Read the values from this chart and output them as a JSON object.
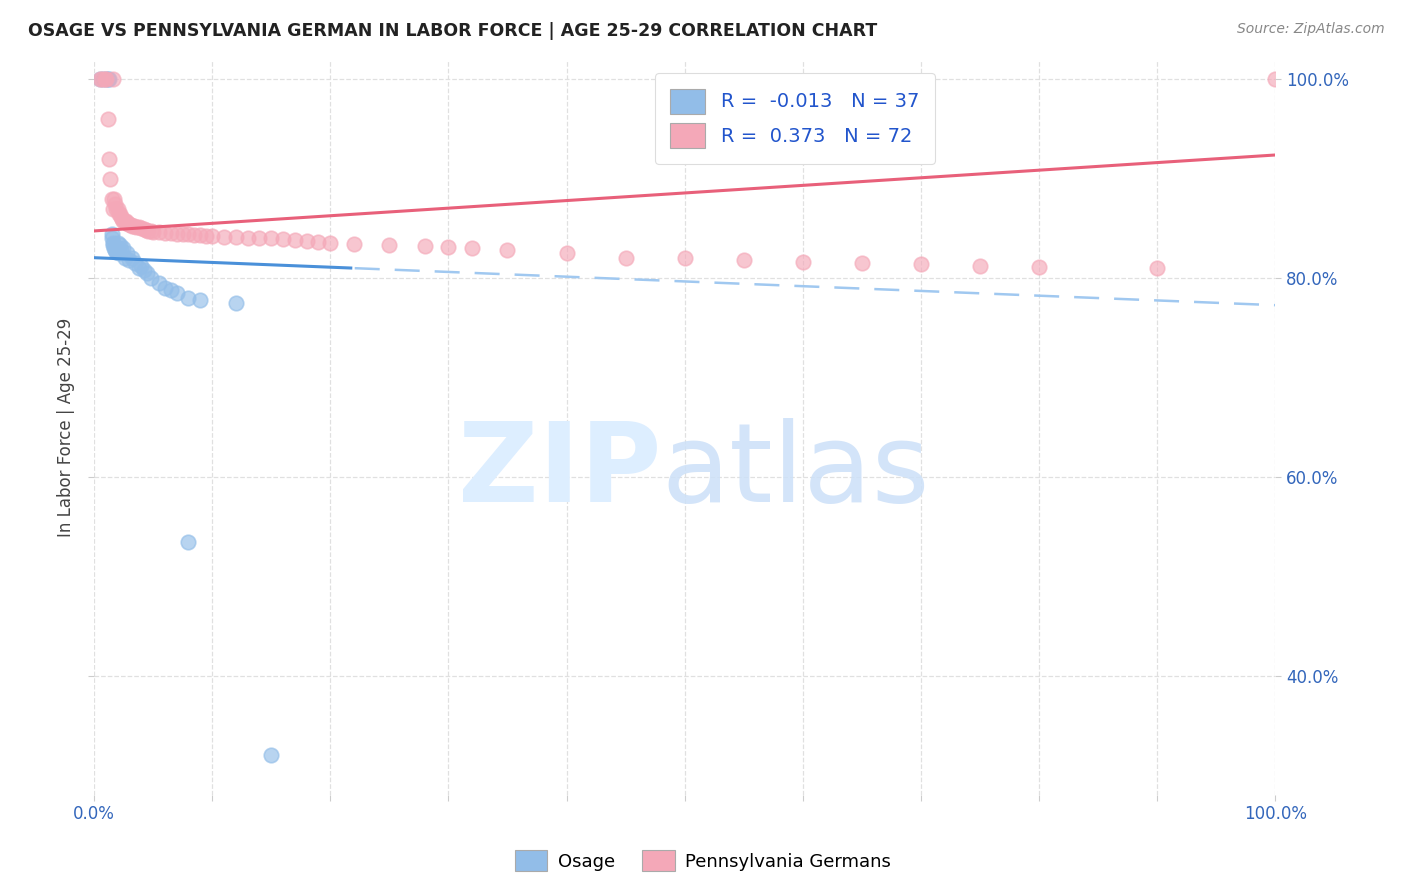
{
  "title": "OSAGE VS PENNSYLVANIA GERMAN IN LABOR FORCE | AGE 25-29 CORRELATION CHART",
  "source": "Source: ZipAtlas.com",
  "ylabel": "In Labor Force | Age 25-29",
  "watermark_zip": "ZIP",
  "watermark_atlas": "atlas",
  "xlim": [
    0.0,
    1.0
  ],
  "ylim": [
    0.28,
    1.02
  ],
  "xtick_vals": [
    0.0,
    0.1,
    0.2,
    0.3,
    0.4,
    0.5,
    0.6,
    0.7,
    0.8,
    0.9,
    1.0
  ],
  "ytick_vals": [
    0.4,
    0.6,
    0.8,
    1.0
  ],
  "osage_color": "#92bde8",
  "penn_color": "#f4a8b8",
  "osage_line_color": "#4a90d9",
  "osage_dash_color": "#a0c8f0",
  "penn_line_color": "#e8607a",
  "osage_R": -0.013,
  "osage_N": 37,
  "penn_R": 0.373,
  "penn_N": 72,
  "legend_label_osage": "Osage",
  "legend_label_penn": "Pennsylvania Germans",
  "osage_scatter_x": [
    0.005,
    0.008,
    0.01,
    0.012,
    0.013,
    0.015,
    0.015,
    0.016,
    0.016,
    0.017,
    0.018,
    0.019,
    0.02,
    0.02,
    0.021,
    0.022,
    0.023,
    0.025,
    0.026,
    0.028,
    0.03,
    0.032,
    0.035,
    0.038,
    0.04,
    0.042,
    0.045,
    0.048,
    0.055,
    0.06,
    0.065,
    0.07,
    0.08,
    0.09,
    0.12,
    0.15,
    0.08
  ],
  "osage_scatter_y": [
    1.0,
    1.0,
    1.0,
    1.0,
    1.0,
    0.845,
    0.84,
    0.835,
    0.833,
    0.83,
    0.828,
    0.826,
    0.835,
    0.83,
    0.825,
    0.833,
    0.828,
    0.83,
    0.82,
    0.825,
    0.818,
    0.82,
    0.815,
    0.81,
    0.812,
    0.808,
    0.805,
    0.8,
    0.795,
    0.79,
    0.788,
    0.785,
    0.78,
    0.778,
    0.775,
    0.32,
    0.535
  ],
  "penn_scatter_x": [
    0.005,
    0.007,
    0.009,
    0.01,
    0.012,
    0.013,
    0.014,
    0.015,
    0.016,
    0.016,
    0.017,
    0.018,
    0.019,
    0.02,
    0.021,
    0.022,
    0.023,
    0.024,
    0.025,
    0.026,
    0.027,
    0.028,
    0.029,
    0.03,
    0.031,
    0.032,
    0.034,
    0.036,
    0.038,
    0.04,
    0.042,
    0.044,
    0.046,
    0.048,
    0.05,
    0.055,
    0.06,
    0.065,
    0.07,
    0.075,
    0.08,
    0.085,
    0.09,
    0.095,
    0.1,
    0.11,
    0.12,
    0.13,
    0.14,
    0.15,
    0.16,
    0.17,
    0.18,
    0.19,
    0.2,
    0.22,
    0.25,
    0.28,
    0.3,
    0.32,
    0.35,
    0.4,
    0.45,
    0.5,
    0.55,
    0.6,
    0.65,
    0.7,
    0.75,
    0.8,
    0.9,
    1.0
  ],
  "penn_scatter_y": [
    1.0,
    1.0,
    1.0,
    1.0,
    0.96,
    0.92,
    0.9,
    0.88,
    1.0,
    0.87,
    0.88,
    0.875,
    0.87,
    0.87,
    0.865,
    0.865,
    0.862,
    0.86,
    0.858,
    0.858,
    0.858,
    0.856,
    0.855,
    0.855,
    0.854,
    0.853,
    0.853,
    0.852,
    0.852,
    0.851,
    0.85,
    0.849,
    0.848,
    0.848,
    0.847,
    0.847,
    0.846,
    0.846,
    0.845,
    0.845,
    0.845,
    0.844,
    0.844,
    0.843,
    0.843,
    0.842,
    0.842,
    0.841,
    0.841,
    0.84,
    0.839,
    0.838,
    0.837,
    0.836,
    0.835,
    0.834,
    0.833,
    0.832,
    0.831,
    0.83,
    0.828,
    0.825,
    0.82,
    0.82,
    0.818,
    0.816,
    0.815,
    0.814,
    0.812,
    0.811,
    0.81,
    1.0
  ],
  "background_color": "#ffffff",
  "grid_color": "#e0e0e0",
  "legend_R_color": "#2255cc",
  "legend_N_color": "#2255cc"
}
